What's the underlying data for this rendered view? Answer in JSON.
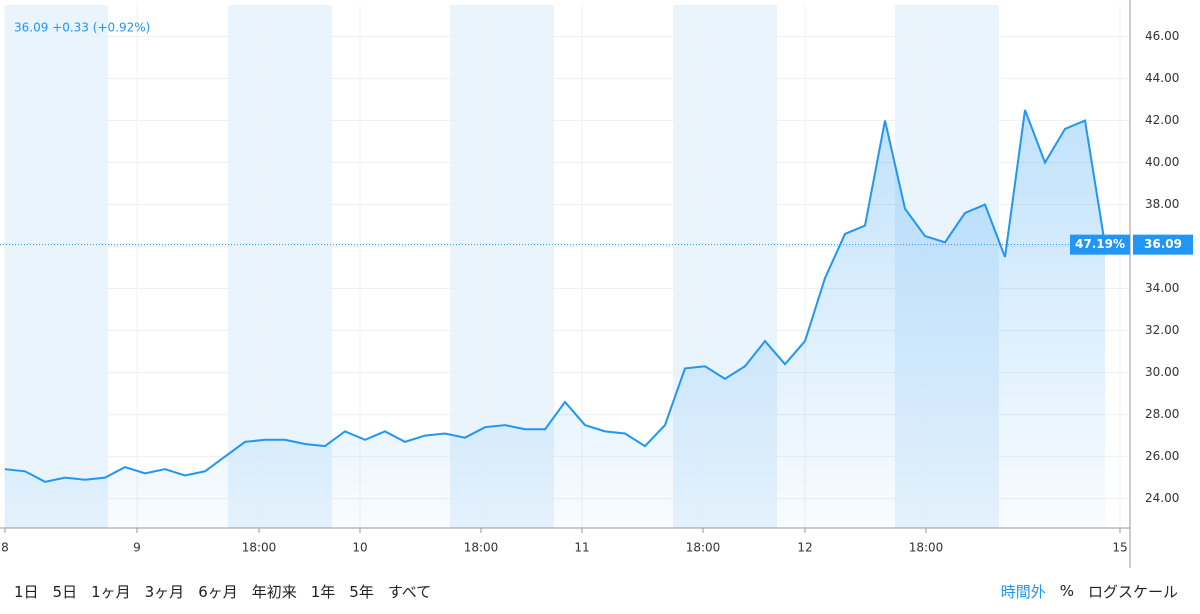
{
  "chart_data": {
    "type": "line",
    "header": "36.09 +0.33 (+0.92%)",
    "series": [
      {
        "name": "price",
        "color": "#2196f3",
        "values": [
          25.4,
          25.3,
          24.8,
          25.0,
          24.9,
          25.0,
          25.5,
          25.2,
          25.4,
          25.1,
          25.3,
          26.0,
          26.7,
          26.8,
          26.8,
          26.6,
          26.5,
          27.2,
          26.8,
          27.2,
          26.7,
          27.0,
          27.1,
          26.9,
          27.4,
          27.5,
          27.3,
          27.3,
          28.6,
          27.5,
          27.2,
          27.1,
          26.5,
          27.5,
          30.2,
          30.3,
          29.7,
          30.3,
          31.5,
          30.4,
          31.5,
          34.5,
          36.6,
          37.0,
          42.0,
          37.8,
          36.5,
          36.2,
          37.6,
          38.0,
          35.5,
          42.5,
          40.0,
          41.6,
          42.0,
          36.09
        ]
      }
    ],
    "last_change_label": "47.19%",
    "last_price_label": "36.09",
    "xlim": [
      0,
      55.75
    ],
    "xticks": [
      {
        "value": 0,
        "label": "8"
      },
      {
        "value": 6.6,
        "label": "9"
      },
      {
        "value": 12.7,
        "label": "18:00"
      },
      {
        "value": 17.75,
        "label": "10"
      },
      {
        "value": 23.8,
        "label": "18:00"
      },
      {
        "value": 28.85,
        "label": "11"
      },
      {
        "value": 34.9,
        "label": "18:00"
      },
      {
        "value": 40,
        "label": "12"
      },
      {
        "value": 46.05,
        "label": "18:00"
      },
      {
        "value": 55.75,
        "label": "15"
      }
    ],
    "ylim": [
      22.6,
      47.5
    ],
    "yticks": [
      {
        "value": 24,
        "label": "24.00"
      },
      {
        "value": 26,
        "label": "26.00"
      },
      {
        "value": 28,
        "label": "28.00"
      },
      {
        "value": 30,
        "label": "30.00"
      },
      {
        "value": 32,
        "label": "32.00"
      },
      {
        "value": 34,
        "label": "34.00"
      },
      {
        "value": 36,
        "label": "36.00"
      },
      {
        "value": 38,
        "label": "38.00"
      },
      {
        "value": 40,
        "label": "40.00"
      },
      {
        "value": 42,
        "label": "42.00"
      },
      {
        "value": 44,
        "label": "44.00"
      },
      {
        "value": 46,
        "label": "46.00"
      }
    ],
    "grid": true
  },
  "toolbar": {
    "ranges": [
      "1日",
      "5日",
      "1ヶ月",
      "3ヶ月",
      "6ヶ月",
      "年初来",
      "1年",
      "5年",
      "すべて"
    ],
    "extended_hours": "時間外",
    "percent": "%",
    "log_scale": "ログスケール"
  }
}
